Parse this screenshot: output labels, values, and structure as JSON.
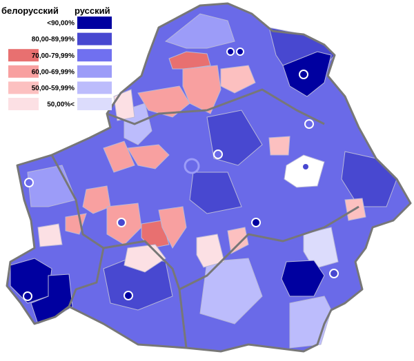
{
  "legend": {
    "left_header": "белорусский",
    "right_header": "русский",
    "rows": [
      {
        "label": "<90,00%",
        "russian_color": "#0000a0"
      },
      {
        "label": "80,00-89,99%",
        "russian_color": "#4848d0"
      },
      {
        "label": "70,00-79,99%",
        "russian_color": "#7070f0",
        "belarusian_color": "#e87070"
      },
      {
        "label": "60,00-69,99%",
        "russian_color": "#9c9cf8",
        "belarusian_color": "#f8a0a0"
      },
      {
        "label": "50,00-59,99%",
        "russian_color": "#bcbcfc",
        "belarusian_color": "#fcc0c0"
      },
      {
        "label": "50,00%<",
        "russian_color": "#dcdcfc",
        "belarusian_color": "#fce0e4"
      }
    ]
  }
}
